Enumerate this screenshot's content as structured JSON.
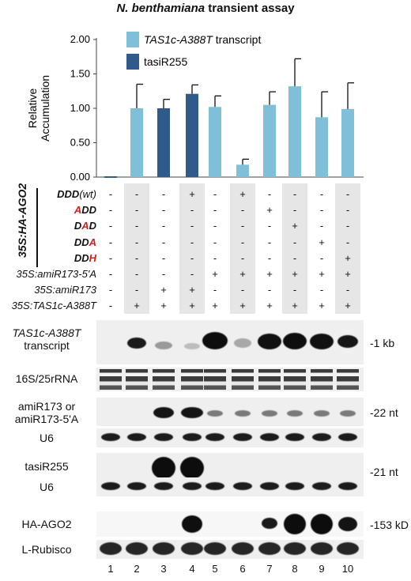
{
  "title": {
    "prefix": "N. benthamiana",
    "suffix": " transient assay"
  },
  "chart_data": {
    "type": "bar",
    "ylabel_line1": "Relative",
    "ylabel_line2": "Accumulation",
    "ylim": [
      0,
      2.0
    ],
    "yticks": [
      "0.00",
      "0.50",
      "1.00",
      "1.50",
      "2.00"
    ],
    "categories": [
      "1",
      "2",
      "3",
      "4",
      "5",
      "6",
      "7",
      "8",
      "9",
      "10"
    ],
    "series": [
      {
        "name": "TAS1c-A388T transcript",
        "color": "#7fbfd8",
        "values": [
          0,
          1.0,
          null,
          null,
          1.02,
          0.18,
          1.05,
          1.32,
          0.87,
          0.99
        ],
        "errors": [
          0,
          0.35,
          null,
          null,
          0.16,
          0.08,
          0.19,
          0.4,
          0.37,
          0.38
        ]
      },
      {
        "name": "tasiR255",
        "color": "#2f5a8a",
        "values": [
          0,
          null,
          1.0,
          1.21,
          null,
          null,
          null,
          null,
          null,
          null
        ],
        "errors": [
          0,
          null,
          0.13,
          0.13,
          null,
          null,
          null,
          null,
          null,
          null
        ]
      }
    ],
    "legend": "top-left"
  },
  "matrix": {
    "group_label": "35S:HA-AGO2",
    "rows": [
      {
        "label_parts": [
          {
            "t": "DDD",
            "red": false
          },
          {
            "t": "(wt)",
            "red": false,
            "plain": true
          }
        ],
        "marks": [
          "-",
          "-",
          "-",
          "+",
          "-",
          "+",
          "-",
          "-",
          "-",
          "-"
        ]
      },
      {
        "label_parts": [
          {
            "t": "A",
            "red": true
          },
          {
            "t": "DD",
            "red": false
          }
        ],
        "marks": [
          "-",
          "-",
          "-",
          "-",
          "-",
          "-",
          "+",
          "-",
          "-",
          "-"
        ]
      },
      {
        "label_parts": [
          {
            "t": "D",
            "red": false
          },
          {
            "t": "A",
            "red": true
          },
          {
            "t": "D",
            "red": false
          }
        ],
        "marks": [
          "-",
          "-",
          "-",
          "-",
          "-",
          "-",
          "-",
          "+",
          "-",
          "-"
        ]
      },
      {
        "label_parts": [
          {
            "t": "DD",
            "red": false
          },
          {
            "t": "A",
            "red": true
          }
        ],
        "marks": [
          "-",
          "-",
          "-",
          "-",
          "-",
          "-",
          "-",
          "-",
          "+",
          "-"
        ]
      },
      {
        "label_parts": [
          {
            "t": "DD",
            "red": false
          },
          {
            "t": "H",
            "red": true
          }
        ],
        "marks": [
          "-",
          "-",
          "-",
          "-",
          "-",
          "-",
          "-",
          "-",
          "-",
          "+"
        ]
      }
    ],
    "plain_rows": [
      {
        "label": "35S:amiR173-5'A",
        "marks": [
          "-",
          "-",
          "-",
          "-",
          "+",
          "+",
          "+",
          "+",
          "+",
          "+"
        ]
      },
      {
        "label": "35S:amiR173",
        "marks": [
          "-",
          "-",
          "+",
          "+",
          "-",
          "-",
          "-",
          "-",
          "-",
          "-"
        ]
      },
      {
        "label": "35S:TAS1c-A388T",
        "marks": [
          "-",
          "+",
          "+",
          "+",
          "+",
          "+",
          "+",
          "+",
          "+",
          "+"
        ]
      }
    ]
  },
  "blots": {
    "transcript_label_1": "TAS1c-A388T",
    "transcript_label_2": "transcript",
    "transcript_size": "-1 kb",
    "rrna_label": "16S/25rRNA",
    "amir_label_1": "amiR173 or",
    "amir_label_2": "amiR173-5'A",
    "amir_size": "-22 nt",
    "u6_label_a": "U6",
    "tasir_label": "tasiR255",
    "tasir_size": "-21 nt",
    "u6_label_b": "U6",
    "ago_label": "HA-AGO2",
    "ago_size": "-153 kD",
    "rubisco_label": "L-Rubisco"
  },
  "lanes": [
    "1",
    "2",
    "3",
    "4",
    "5",
    "6",
    "7",
    "8",
    "9",
    "10"
  ]
}
